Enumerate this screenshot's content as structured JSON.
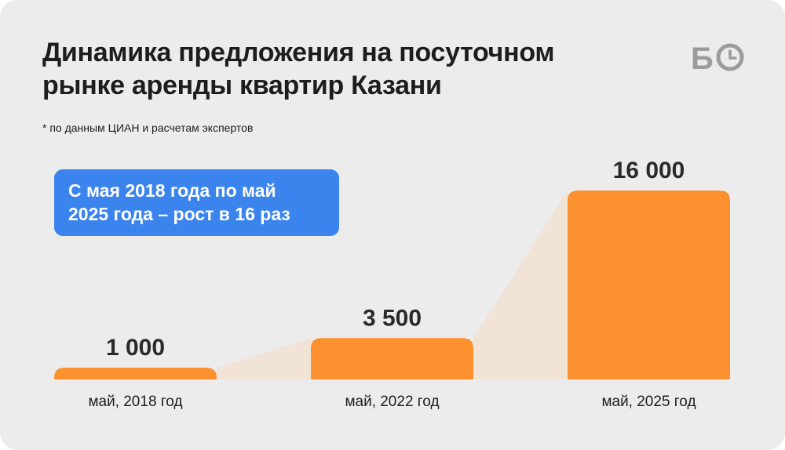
{
  "header": {
    "title_line1": "Динамика предложения на посуточном",
    "title_line2": "рынке аренды квартир Казани",
    "note": "* по данным ЦИАН и расчетам экспертов"
  },
  "logo": {
    "text": "Б",
    "icon": "clock-o-icon",
    "color": "#9b9b9b"
  },
  "callout": {
    "line1": "С мая 2018 года по май",
    "line2": "2025 года – рост в 16 раз",
    "color": "#3b84ee"
  },
  "colors": {
    "background": "#ececec",
    "bar": "#fd912f",
    "connector": "#f2e3d7",
    "text": "#1d1d1d"
  },
  "chart_data": {
    "type": "bar",
    "title": "Динамика предложения на посуточном рынке аренды квартир Казани",
    "categories": [
      "май, 2018 год",
      "май, 2022 год",
      "май, 2025 год"
    ],
    "values": [
      1000,
      3500,
      16000
    ],
    "value_labels": [
      "1 000",
      "3 500",
      "16 000"
    ],
    "xlabel": "",
    "ylabel": "",
    "grid": false,
    "legend": "none"
  }
}
